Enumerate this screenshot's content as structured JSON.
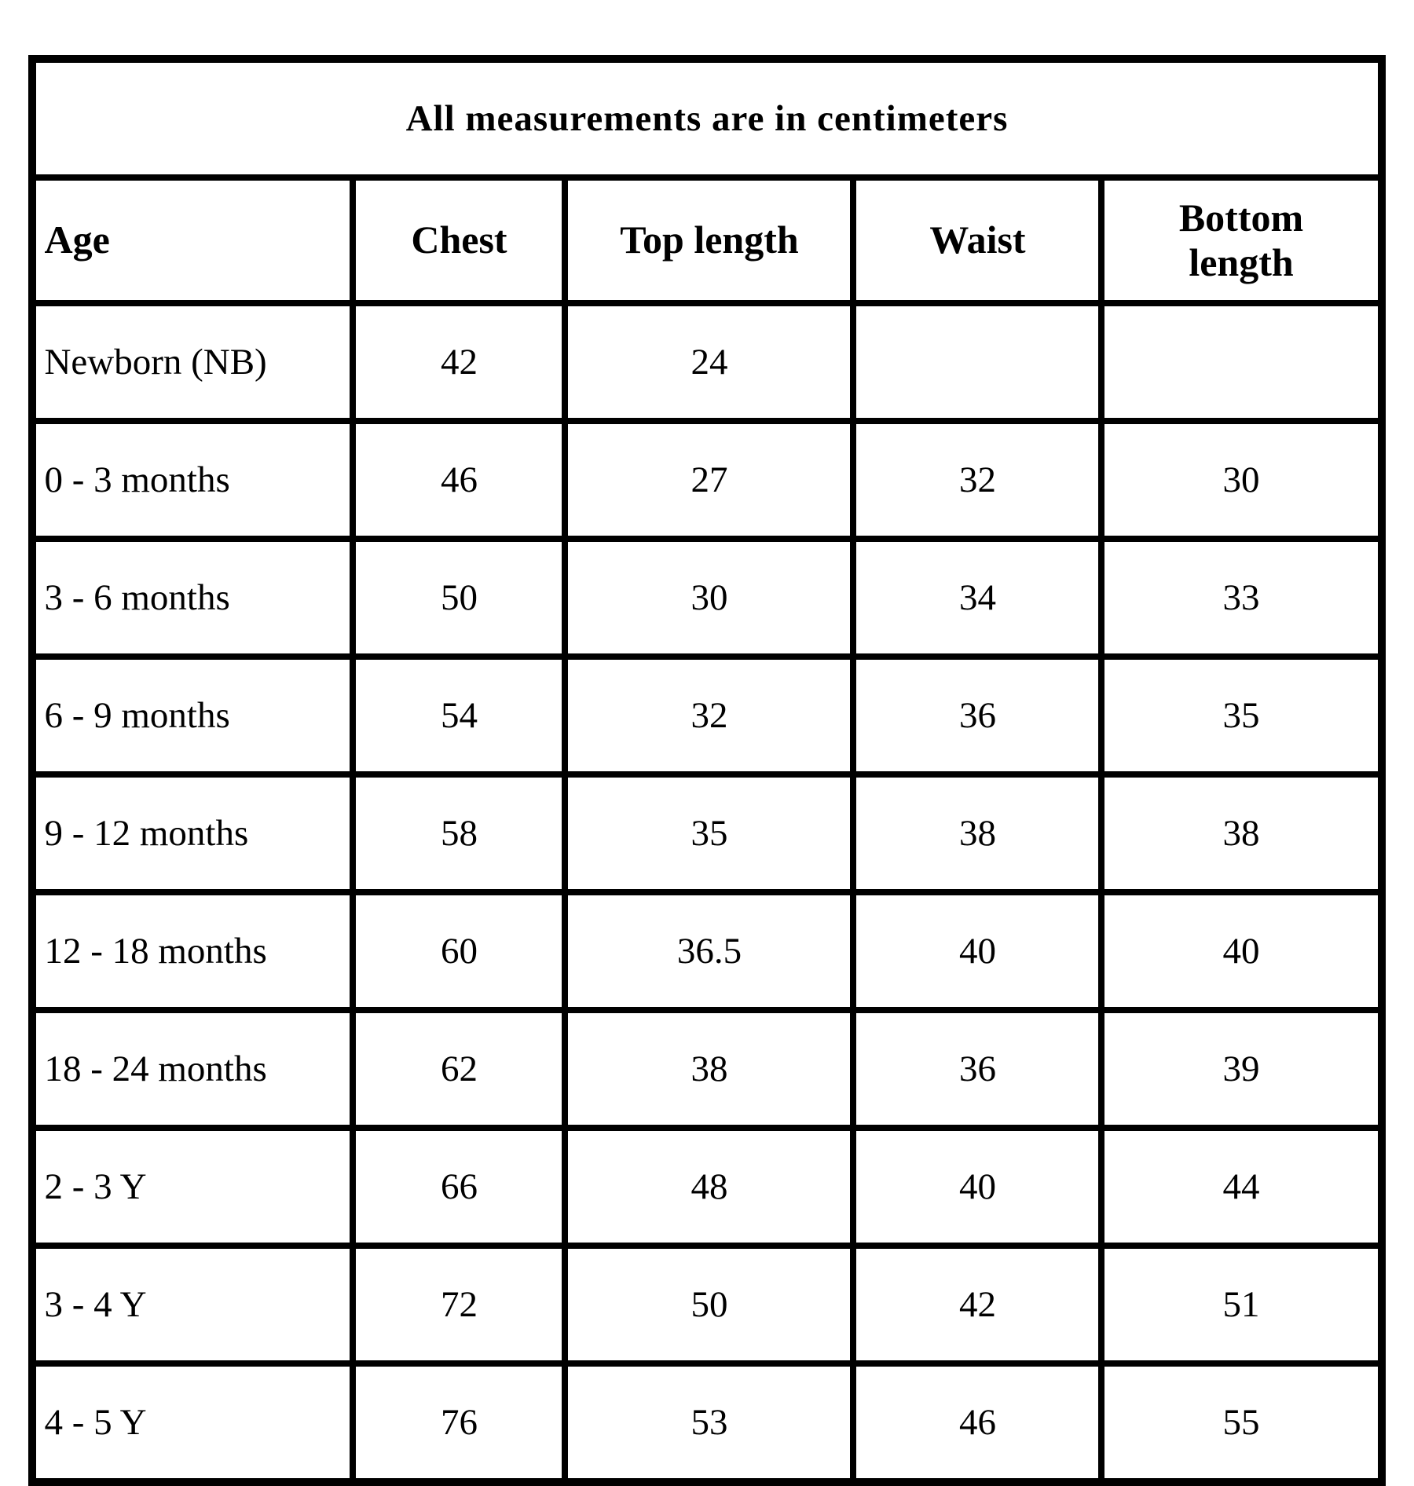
{
  "table": {
    "caption": "All measurements are in centimeters",
    "columns": [
      "Age",
      "Chest",
      "Top length",
      "Waist",
      "Bottom length"
    ],
    "rows": [
      [
        "Newborn (NB)",
        "42",
        "24",
        "",
        ""
      ],
      [
        "0 - 3 months",
        "46",
        "27",
        "32",
        "30"
      ],
      [
        "3 - 6 months",
        "50",
        "30",
        "34",
        "33"
      ],
      [
        "6 - 9 months",
        "54",
        "32",
        "36",
        "35"
      ],
      [
        "9 - 12 months",
        "58",
        "35",
        "38",
        "38"
      ],
      [
        "12 - 18 months",
        "60",
        "36.5",
        "40",
        "40"
      ],
      [
        "18 - 24 months",
        "62",
        "38",
        "36",
        "39"
      ],
      [
        "2 - 3 Y",
        "66",
        "48",
        "40",
        "44"
      ],
      [
        "3 - 4 Y",
        "72",
        "50",
        "42",
        "51"
      ],
      [
        "4 - 5 Y",
        "76",
        "53",
        "46",
        "55"
      ]
    ]
  },
  "chart_data": {
    "type": "table",
    "title": "All measurements are in centimeters",
    "columns": [
      "Age",
      "Chest",
      "Top length",
      "Waist",
      "Bottom length"
    ],
    "rows": [
      {
        "age": "Newborn (NB)",
        "chest": 42,
        "top_length": 24,
        "waist": null,
        "bottom_length": null
      },
      {
        "age": "0 - 3 months",
        "chest": 46,
        "top_length": 27,
        "waist": 32,
        "bottom_length": 30
      },
      {
        "age": "3 - 6 months",
        "chest": 50,
        "top_length": 30,
        "waist": 34,
        "bottom_length": 33
      },
      {
        "age": "6 - 9 months",
        "chest": 54,
        "top_length": 32,
        "waist": 36,
        "bottom_length": 35
      },
      {
        "age": "9 - 12 months",
        "chest": 58,
        "top_length": 35,
        "waist": 38,
        "bottom_length": 38
      },
      {
        "age": "12 - 18 months",
        "chest": 60,
        "top_length": 36.5,
        "waist": 40,
        "bottom_length": 40
      },
      {
        "age": "18 - 24 months",
        "chest": 62,
        "top_length": 38,
        "waist": 36,
        "bottom_length": 39
      },
      {
        "age": "2 - 3 Y",
        "chest": 66,
        "top_length": 48,
        "waist": 40,
        "bottom_length": 44
      },
      {
        "age": "3 - 4 Y",
        "chest": 72,
        "top_length": 50,
        "waist": 42,
        "bottom_length": 51
      },
      {
        "age": "4 - 5 Y",
        "chest": 76,
        "top_length": 53,
        "waist": 46,
        "bottom_length": 55
      }
    ],
    "units": "centimeters",
    "layout": "grid with heavy black borders, title row spans all columns"
  },
  "colors": {
    "border": "#000000",
    "background": "#ffffff",
    "text": "#000000"
  }
}
